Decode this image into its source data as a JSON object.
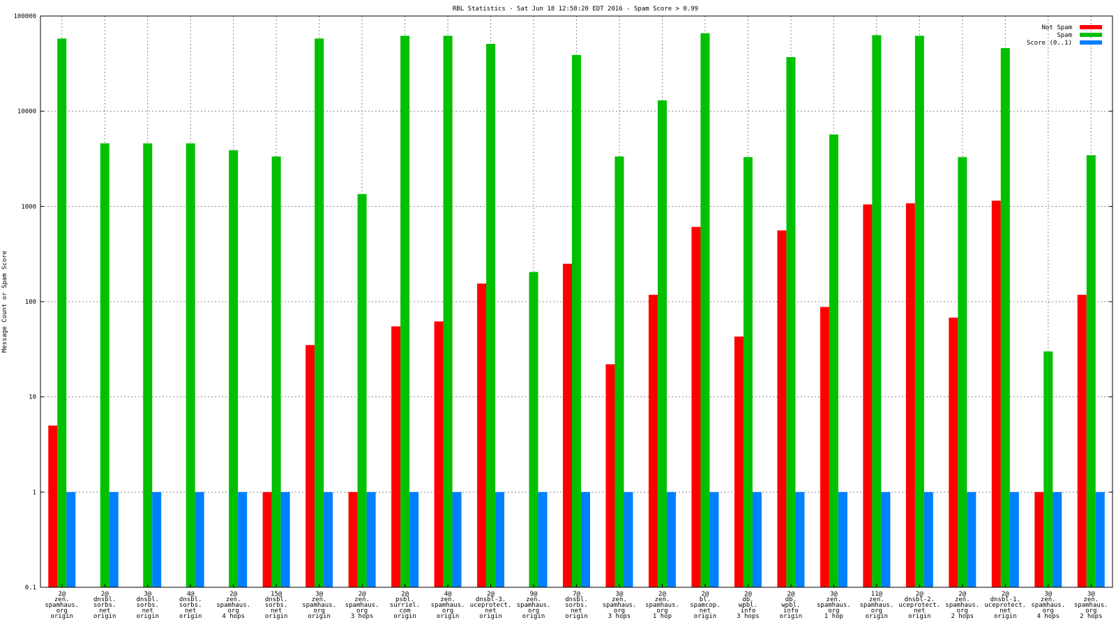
{
  "chart_data": {
    "type": "bar",
    "title": "RBL Statistics - Sat Jun 18 12:58:20 EDT 2016 - Spam Score > 0.99",
    "xlabel": "",
    "ylabel": "Message Count or Spam Score",
    "yscale": "log",
    "ylim": [
      0.1,
      100000
    ],
    "yticks": [
      "0.1",
      "1",
      "10",
      "100",
      "1000",
      "10000",
      "100000"
    ],
    "grid": true,
    "legend_position": "top-right",
    "categories": [
      [
        "2@",
        "zen.",
        "spamhaus.",
        "org",
        "origin"
      ],
      [
        "2@",
        "dnsbl.",
        "sorbs.",
        "net",
        "origin"
      ],
      [
        "3@",
        "dnsbl.",
        "sorbs.",
        "net",
        "origin"
      ],
      [
        "4@",
        "dnsbl.",
        "sorbs.",
        "net",
        "origin"
      ],
      [
        "2@",
        "zen.",
        "spamhaus.",
        "org",
        "4 hops"
      ],
      [
        "15@",
        "dnsbl.",
        "sorbs.",
        "net",
        "origin"
      ],
      [
        "3@",
        "zen.",
        "spamhaus.",
        "org",
        "origin"
      ],
      [
        "2@",
        "zen.",
        "spamhaus.",
        "org",
        "3 hops"
      ],
      [
        "2@",
        "psbl.",
        "surriel.",
        "com",
        "origin"
      ],
      [
        "4@",
        "zen.",
        "spamhaus.",
        "org",
        "origin"
      ],
      [
        "2@",
        "dnsbl-3.",
        "uceprotect.",
        "net",
        "origin"
      ],
      [
        "9@",
        "zen.",
        "spamhaus.",
        "org",
        "origin"
      ],
      [
        "7@",
        "dnsbl.",
        "sorbs.",
        "net",
        "origin"
      ],
      [
        "3@",
        "zen.",
        "spamhaus.",
        "org",
        "3 hops"
      ],
      [
        "2@",
        "zen.",
        "spamhaus.",
        "org",
        "1 hop"
      ],
      [
        "2@",
        "bl.",
        "spamcop.",
        "net",
        "origin"
      ],
      [
        "2@",
        "db.",
        "wpbl.",
        "info",
        "3 hops"
      ],
      [
        "2@",
        "db.",
        "wpbl.",
        "info",
        "origin"
      ],
      [
        "3@",
        "zen.",
        "spamhaus.",
        "org",
        "1 hop"
      ],
      [
        "11@",
        "zen.",
        "spamhaus.",
        "org",
        "origin"
      ],
      [
        "2@",
        "dnsbl-2.",
        "uceprotect.",
        "net",
        "origin"
      ],
      [
        "2@",
        "zen.",
        "spamhaus.",
        "org",
        "2 hops"
      ],
      [
        "2@",
        "dnsbl-1.",
        "uceprotect.",
        "net",
        "origin"
      ],
      [
        "3@",
        "zen.",
        "spamhaus.",
        "org",
        "4 hops"
      ],
      [
        "3@",
        "zen.",
        "spamhaus.",
        "org",
        "2 hops"
      ]
    ],
    "series": [
      {
        "name": "Not Spam",
        "color": "#ff0000",
        "values": [
          5,
          null,
          null,
          null,
          null,
          1,
          35,
          1,
          55,
          62,
          155,
          null,
          250,
          22,
          118,
          610,
          43,
          560,
          88,
          1050,
          1080,
          68,
          1150,
          1,
          118
        ]
      },
      {
        "name": "Spam",
        "color": "#00c000",
        "values": [
          58000,
          4600,
          4600,
          4600,
          3900,
          3350,
          58000,
          1350,
          62000,
          62000,
          51000,
          205,
          39000,
          3350,
          13000,
          66000,
          3300,
          37000,
          5700,
          63000,
          62000,
          3300,
          46000,
          30,
          3450
        ]
      },
      {
        "name": "Score (0..1)",
        "color": "#0080ff",
        "values": [
          1,
          1,
          1,
          1,
          1,
          1,
          1,
          1,
          1,
          1,
          1,
          1,
          1,
          1,
          1,
          1,
          1,
          1,
          1,
          1,
          1,
          1,
          1,
          1,
          1
        ]
      }
    ]
  }
}
